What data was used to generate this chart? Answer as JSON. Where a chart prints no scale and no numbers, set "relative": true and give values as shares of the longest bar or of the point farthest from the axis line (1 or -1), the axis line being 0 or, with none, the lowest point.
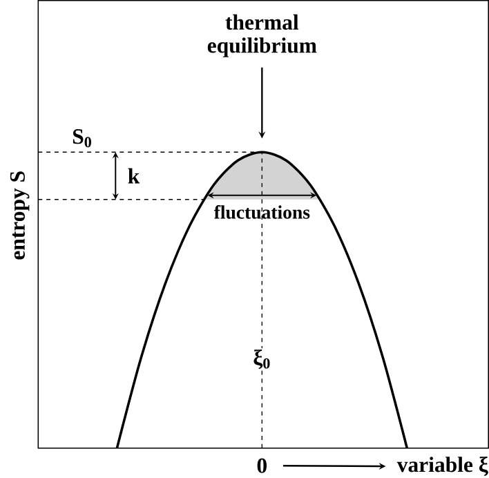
{
  "chart_data": {
    "type": "line",
    "relative": true,
    "xlabel": "variable ξ",
    "ylabel": "entropy S",
    "categories": [
      null,
      null,
      null,
      null,
      null,
      null,
      null,
      null,
      null,
      null,
      null,
      null,
      null,
      null,
      null,
      null,
      null,
      null,
      null
    ],
    "series": [
      {
        "color": "#000000",
        "values": [
          null,
          null,
          null,
          0,
          0.306,
          0.556,
          0.75,
          0.889,
          0.972,
          1,
          0.972,
          0.889,
          0.75,
          0.556,
          0.306,
          0,
          null,
          null,
          null
        ]
      }
    ],
    "ref_lines": [
      {
        "axis": "y",
        "value": 1,
        "label": "S$_{0}$",
        "line_style": "dashed"
      },
      {
        "axis": "y",
        "value": 0.84,
        "line_style": "dashed"
      },
      {
        "axis": "x",
        "value": "0",
        "label": "ξ$_{0}$",
        "line_style": "dashed"
      }
    ],
    "bands": [
      {
        "axis": "y",
        "from": 0.84,
        "to": 1,
        "label": "fluctuations",
        "color": "#d3d3d3"
      }
    ],
    "annotations": [
      "thermal equilibrium",
      "k"
    ]
  }
}
